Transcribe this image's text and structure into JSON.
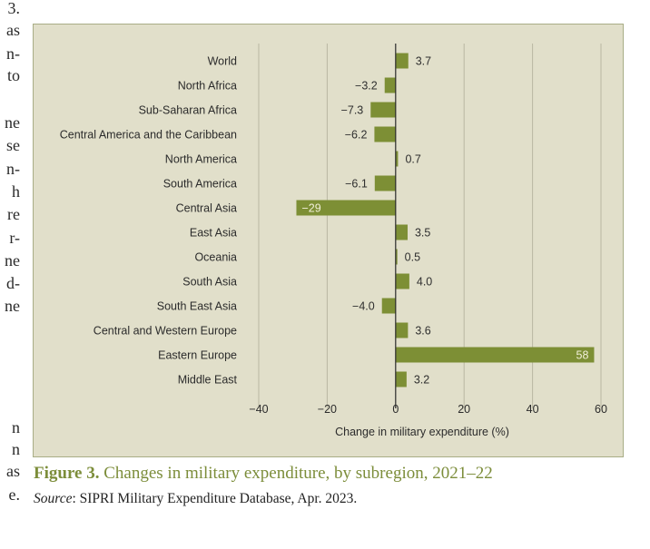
{
  "margin_text": [
    "3.",
    "as",
    "n-",
    "to",
    "",
    "ne",
    "se",
    "n-",
    "h",
    "re",
    "r-",
    "ne",
    "d-",
    "ne",
    "",
    "",
    "",
    "",
    "n",
    "n",
    "as",
    "e."
  ],
  "caption": {
    "figure_label": "Figure 3.",
    "title": " Changes in military expenditure, by subregion, 2021–22",
    "source_label": "Source",
    "source_text": ": SIPRI Military Expenditure Database, Apr. 2023."
  },
  "colors": {
    "bar": "#7d8f35",
    "panel_bg": "#e1dfca",
    "panel_border": "#a9ad86",
    "grid": "#b9b7a2",
    "caption": "#7c8d3a"
  },
  "chart_data": {
    "type": "bar",
    "orientation": "horizontal",
    "title": "Changes in military expenditure, by subregion, 2021–22",
    "xlabel": "Change in military expenditure (%)",
    "ylabel": "",
    "xlim": [
      -40,
      60
    ],
    "xticks": [
      -40,
      -20,
      0,
      20,
      40,
      60
    ],
    "xtick_labels": [
      "−40",
      "−20",
      "0",
      "20",
      "40",
      "60"
    ],
    "grid": true,
    "categories": [
      "World",
      "North Africa",
      "Sub-Saharan Africa",
      "Central America and the Caribbean",
      "North America",
      "South America",
      "Central Asia",
      "East Asia",
      "Oceania",
      "South Asia",
      "South East Asia",
      "Central and Western Europe",
      "Eastern Europe",
      "Middle East"
    ],
    "values": [
      3.7,
      -3.2,
      -7.3,
      -6.2,
      0.7,
      -6.1,
      -29,
      3.5,
      0.5,
      4.0,
      -4.0,
      3.6,
      58,
      3.2
    ],
    "value_labels": [
      "3.7",
      "−3.2",
      "−7.3",
      "−6.2",
      "0.7",
      "−6.1",
      "−29",
      "3.5",
      "0.5",
      "4.0",
      "−4.0",
      "3.6",
      "58",
      "3.2"
    ],
    "inside_labels": [
      "Central Asia",
      "Eastern Europe"
    ],
    "source": "SIPRI Military Expenditure Database, Apr. 2023."
  }
}
